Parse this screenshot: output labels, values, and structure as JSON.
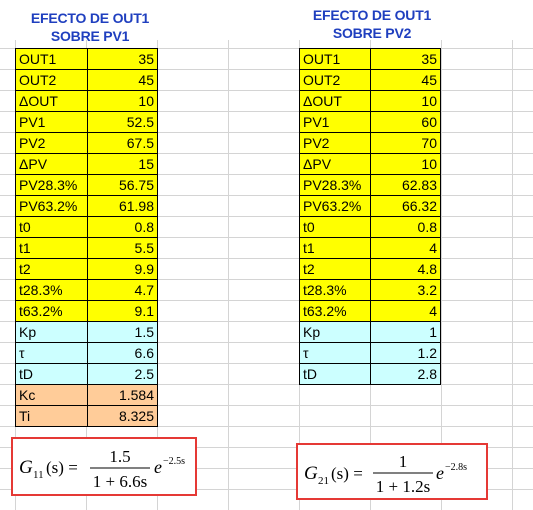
{
  "left": {
    "title_line1": "EFECTO DE OUT1",
    "title_line2": "SOBRE PV1",
    "rows": [
      {
        "label": "OUT1",
        "value": "35",
        "color": "yellow"
      },
      {
        "label": "OUT2",
        "value": "45",
        "color": "yellow"
      },
      {
        "label": "ΔOUT",
        "value": "10",
        "color": "yellow"
      },
      {
        "label": "PV1",
        "value": "52.5",
        "color": "yellow"
      },
      {
        "label": "PV2",
        "value": "67.5",
        "color": "yellow"
      },
      {
        "label": "ΔPV",
        "value": "15",
        "color": "yellow"
      },
      {
        "label": "PV28.3%",
        "value": "56.75",
        "color": "yellow"
      },
      {
        "label": "PV63.2%",
        "value": "61.98",
        "color": "yellow"
      },
      {
        "label": "t0",
        "value": "0.8",
        "color": "yellow"
      },
      {
        "label": "t1",
        "value": "5.5",
        "color": "yellow"
      },
      {
        "label": "t2",
        "value": "9.9",
        "color": "yellow"
      },
      {
        "label": "t28.3%",
        "value": "4.7",
        "color": "yellow"
      },
      {
        "label": "t63.2%",
        "value": "9.1",
        "color": "yellow"
      },
      {
        "label": "Kp",
        "value": "1.5",
        "color": "cyan"
      },
      {
        "label": "τ",
        "value": "6.6",
        "color": "cyan"
      },
      {
        "label": "tD",
        "value": "2.5",
        "color": "cyan"
      },
      {
        "label": "Kc",
        "value": "1.584",
        "color": "orange"
      },
      {
        "label": "Ti",
        "value": "8.325",
        "color": "orange"
      }
    ],
    "formula": {
      "lhs": "G",
      "subscript": "11",
      "arg": "(s) =",
      "numerator": "1.5",
      "denominator": "1 + 6.6s",
      "exp_base": "e",
      "exp_power": "−2.5s"
    }
  },
  "right": {
    "title_line1": "EFECTO DE OUT1",
    "title_line2": "SOBRE PV2",
    "rows": [
      {
        "label": "OUT1",
        "value": "35",
        "color": "yellow"
      },
      {
        "label": "OUT2",
        "value": "45",
        "color": "yellow"
      },
      {
        "label": "ΔOUT",
        "value": "10",
        "color": "yellow"
      },
      {
        "label": "PV1",
        "value": "60",
        "color": "yellow"
      },
      {
        "label": "PV2",
        "value": "70",
        "color": "yellow"
      },
      {
        "label": "ΔPV",
        "value": "10",
        "color": "yellow"
      },
      {
        "label": "PV28.3%",
        "value": "62.83",
        "color": "yellow"
      },
      {
        "label": "PV63.2%",
        "value": "66.32",
        "color": "yellow"
      },
      {
        "label": "t0",
        "value": "0.8",
        "color": "yellow"
      },
      {
        "label": "t1",
        "value": "4",
        "color": "yellow"
      },
      {
        "label": "t2",
        "value": "4.8",
        "color": "yellow"
      },
      {
        "label": "t28.3%",
        "value": "3.2",
        "color": "yellow"
      },
      {
        "label": "t63.2%",
        "value": "4",
        "color": "yellow"
      },
      {
        "label": "Kp",
        "value": "1",
        "color": "cyan"
      },
      {
        "label": "τ",
        "value": "1.2",
        "color": "cyan"
      },
      {
        "label": "tD",
        "value": "2.8",
        "color": "cyan"
      }
    ],
    "formula": {
      "lhs": "G",
      "subscript": "21",
      "arg": "(s) =",
      "numerator": "1",
      "denominator": "1 + 1.2s",
      "exp_base": "e",
      "exp_power": "−2.8s"
    }
  },
  "colors": {
    "yellow": "#ffff00",
    "cyan": "#ccffff",
    "orange": "#ffcc99",
    "title": "#1f3fbf",
    "formula_border": "#e53935"
  }
}
